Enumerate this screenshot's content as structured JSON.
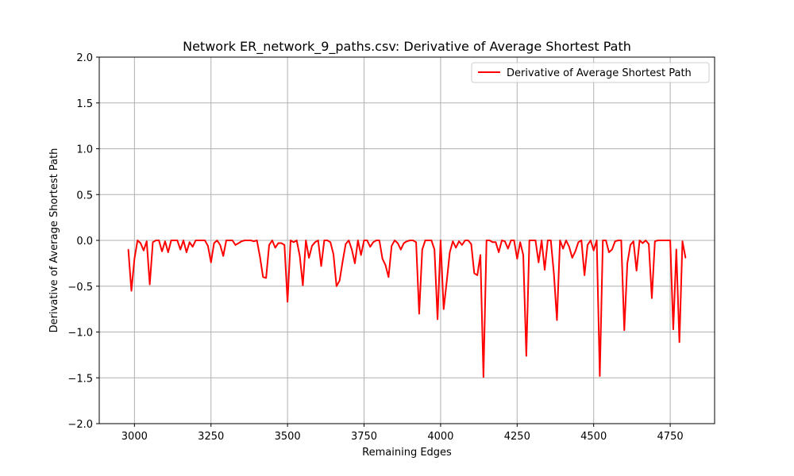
{
  "chart_data": {
    "type": "line",
    "title": "Network ER_network_9_paths.csv: Derivative of Average Shortest Path",
    "xlabel": "Remaining Edges",
    "ylabel": "Derivative of Average Shortest Path",
    "xlim": [
      2885,
      4895
    ],
    "ylim": [
      -2.0,
      2.0
    ],
    "xticks": [
      3000,
      3250,
      3500,
      3750,
      4000,
      4250,
      4500,
      4750
    ],
    "yticks": [
      -2.0,
      -1.5,
      -1.0,
      -0.5,
      0.0,
      0.5,
      1.0,
      1.5,
      2.0
    ],
    "xtick_labels": [
      "3000",
      "3250",
      "3500",
      "3750",
      "4000",
      "4250",
      "4500",
      "4750"
    ],
    "ytick_labels": [
      "−2.0",
      "−1.5",
      "−1.0",
      "−0.5",
      "0.0",
      "0.5",
      "1.0",
      "1.5",
      "2.0"
    ],
    "grid": true,
    "legend_position": "top-right",
    "series": [
      {
        "name": "Derivative of Average Shortest Path",
        "color": "#ff0000",
        "x": [
          2980,
          2990,
          3000,
          3010,
          3020,
          3030,
          3040,
          3050,
          3060,
          3070,
          3080,
          3090,
          3100,
          3110,
          3120,
          3130,
          3140,
          3150,
          3160,
          3170,
          3180,
          3190,
          3200,
          3210,
          3220,
          3230,
          3240,
          3250,
          3260,
          3270,
          3280,
          3290,
          3300,
          3310,
          3320,
          3330,
          3340,
          3350,
          3360,
          3370,
          3380,
          3390,
          3400,
          3410,
          3420,
          3430,
          3440,
          3450,
          3460,
          3470,
          3480,
          3490,
          3500,
          3510,
          3520,
          3530,
          3540,
          3550,
          3560,
          3570,
          3580,
          3590,
          3600,
          3610,
          3620,
          3630,
          3640,
          3650,
          3660,
          3670,
          3680,
          3690,
          3700,
          3710,
          3720,
          3730,
          3740,
          3750,
          3760,
          3770,
          3780,
          3790,
          3800,
          3810,
          3820,
          3830,
          3840,
          3850,
          3860,
          3870,
          3880,
          3890,
          3900,
          3910,
          3920,
          3930,
          3940,
          3950,
          3960,
          3970,
          3980,
          3990,
          4000,
          4010,
          4020,
          4030,
          4040,
          4050,
          4060,
          4070,
          4080,
          4090,
          4100,
          4110,
          4120,
          4130,
          4140,
          4150,
          4160,
          4170,
          4180,
          4190,
          4200,
          4210,
          4220,
          4230,
          4240,
          4250,
          4260,
          4270,
          4280,
          4290,
          4300,
          4310,
          4320,
          4330,
          4340,
          4350,
          4360,
          4370,
          4380,
          4390,
          4400,
          4410,
          4420,
          4430,
          4440,
          4450,
          4460,
          4470,
          4480,
          4490,
          4500,
          4510,
          4520,
          4530,
          4540,
          4550,
          4560,
          4570,
          4580,
          4590,
          4600,
          4610,
          4620,
          4630,
          4640,
          4650,
          4660,
          4670,
          4680,
          4690,
          4700,
          4710,
          4720,
          4730,
          4740,
          4750,
          4760,
          4770,
          4780,
          4790,
          4800
        ],
        "y": [
          -0.1,
          -0.55,
          -0.2,
          0.0,
          -0.03,
          -0.11,
          -0.01,
          -0.48,
          -0.02,
          0.0,
          0.0,
          -0.12,
          -0.01,
          -0.13,
          0.0,
          0.0,
          0.0,
          -0.1,
          0.0,
          -0.13,
          -0.02,
          -0.07,
          0.0,
          0.0,
          0.0,
          0.0,
          -0.06,
          -0.24,
          -0.03,
          0.0,
          -0.05,
          -0.17,
          0.0,
          0.0,
          0.0,
          -0.05,
          -0.03,
          -0.01,
          0.0,
          0.0,
          0.0,
          -0.01,
          0.0,
          -0.18,
          -0.4,
          -0.41,
          -0.05,
          0.0,
          -0.08,
          -0.03,
          -0.03,
          -0.05,
          -0.67,
          0.0,
          -0.02,
          0.0,
          -0.17,
          -0.49,
          0.0,
          -0.19,
          -0.06,
          -0.02,
          0.0,
          -0.28,
          0.0,
          0.0,
          -0.02,
          -0.15,
          -0.5,
          -0.44,
          -0.23,
          -0.04,
          0.0,
          -0.1,
          -0.25,
          0.0,
          -0.16,
          0.0,
          0.0,
          -0.07,
          -0.02,
          0.0,
          0.0,
          -0.2,
          -0.27,
          -0.4,
          -0.06,
          0.0,
          -0.03,
          -0.1,
          -0.03,
          -0.01,
          0.0,
          0.0,
          -0.02,
          -0.8,
          -0.1,
          0.0,
          0.0,
          0.0,
          -0.1,
          -0.86,
          0.0,
          -0.75,
          -0.45,
          -0.13,
          -0.01,
          -0.08,
          -0.01,
          -0.05,
          0.0,
          0.0,
          -0.04,
          -0.36,
          -0.38,
          -0.16,
          -1.49,
          0.0,
          0.0,
          -0.02,
          -0.02,
          -0.13,
          0.0,
          -0.01,
          -0.09,
          0.0,
          0.0,
          -0.2,
          -0.02,
          -0.16,
          -1.26,
          0.0,
          0.0,
          0.0,
          -0.24,
          0.0,
          -0.32,
          0.0,
          0.0,
          -0.36,
          -0.87,
          0.0,
          -0.09,
          0.0,
          -0.07,
          -0.19,
          -0.12,
          -0.02,
          0.0,
          -0.38,
          -0.05,
          0.0,
          -0.11,
          0.0,
          -1.48,
          0.0,
          0.0,
          -0.13,
          -0.1,
          -0.01,
          0.0,
          0.0,
          -0.98,
          -0.25,
          -0.05,
          -0.01,
          -0.33,
          0.0,
          -0.03,
          0.0,
          -0.04,
          -0.63,
          -0.01,
          0.0,
          0.0,
          0.0,
          0.0,
          0.0,
          -0.97,
          -0.1,
          -1.11,
          -0.01,
          -0.19
        ]
      }
    ]
  }
}
